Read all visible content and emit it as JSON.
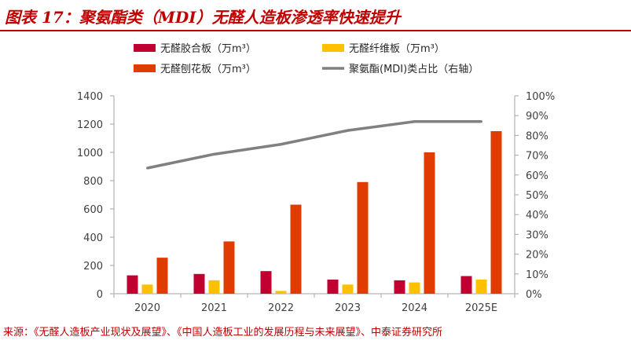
{
  "header": {
    "title": "图表 17：聚氨酯类（MDI）无醛人造板渗透率快速提升"
  },
  "footer": {
    "source": "来源：《无醛人造板产业现状及展望》、《中国人造板工业的发展历程与未来展望》、中泰证券研究所"
  },
  "chart_data": {
    "type": "bar",
    "categories": [
      "2020",
      "2021",
      "2022",
      "2023",
      "2024",
      "2025E"
    ],
    "series": [
      {
        "name": "无醛胶合板（万m³）",
        "type": "bar",
        "axis": "left",
        "color": "#c00030",
        "values": [
          130,
          140,
          160,
          100,
          95,
          125
        ]
      },
      {
        "name": "无醛纤维板（万m³）",
        "type": "bar",
        "axis": "left",
        "color": "#ffc000",
        "values": [
          65,
          95,
          20,
          65,
          80,
          100
        ]
      },
      {
        "name": "无醛刨花板（万m³）",
        "type": "bar",
        "axis": "left",
        "color": "#e03c00",
        "values": [
          255,
          370,
          630,
          790,
          1000,
          1150
        ]
      },
      {
        "name": "聚氨酯(MDI)类占比（右轴）",
        "type": "line",
        "axis": "right",
        "color": "#808080",
        "values": [
          63.5,
          70.5,
          75.5,
          82.5,
          87,
          87
        ]
      }
    ],
    "y_left": {
      "min": 0,
      "max": 1400,
      "ticks": [
        "0",
        "200",
        "400",
        "600",
        "800",
        "1000",
        "1200",
        "1400"
      ]
    },
    "y_right": {
      "min": 0,
      "max": 100,
      "ticks": [
        "0%",
        "10%",
        "20%",
        "30%",
        "40%",
        "50%",
        "60%",
        "70%",
        "80%",
        "90%",
        "100%"
      ]
    },
    "legend_position": "top",
    "grid": false
  }
}
